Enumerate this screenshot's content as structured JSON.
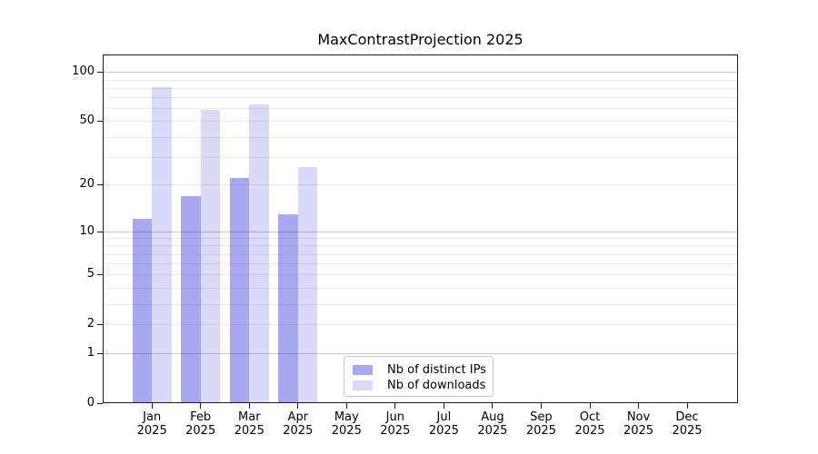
{
  "chart_data": {
    "type": "bar",
    "title": "MaxContrastProjection 2025",
    "categories": [
      "Jan",
      "Feb",
      "Mar",
      "Apr",
      "May",
      "Jun",
      "Jul",
      "Aug",
      "Sep",
      "Oct",
      "Nov",
      "Dec"
    ],
    "year": "2025",
    "series": [
      {
        "name": "Nb of distinct IPs",
        "color": "#a8a8f0",
        "values": [
          12,
          17,
          22,
          13,
          null,
          null,
          null,
          null,
          null,
          null,
          null,
          null
        ]
      },
      {
        "name": "Nb of downloads",
        "color": "#d9d9f8",
        "values": [
          81,
          59,
          63,
          26,
          null,
          null,
          null,
          null,
          null,
          null,
          null,
          null
        ]
      }
    ],
    "xlabel": "",
    "ylabel": "",
    "yscale": "log1p",
    "ylim": [
      0,
      128
    ],
    "yticks": [
      0,
      1,
      2,
      5,
      10,
      20,
      50,
      100
    ],
    "grid": true,
    "grid_major": [
      1,
      10,
      100
    ],
    "grid_minor": [
      2,
      3,
      4,
      5,
      6,
      7,
      8,
      9,
      20,
      30,
      40,
      50,
      60,
      70,
      80,
      90
    ],
    "legend_position": "lower center-right inside plot",
    "colors": {
      "axis": "#1a1a1a",
      "grid_major": "#c9c9c9",
      "grid_minor": "#ececec",
      "legend_border": "#c9c9c9",
      "background": "#ffffff"
    }
  }
}
